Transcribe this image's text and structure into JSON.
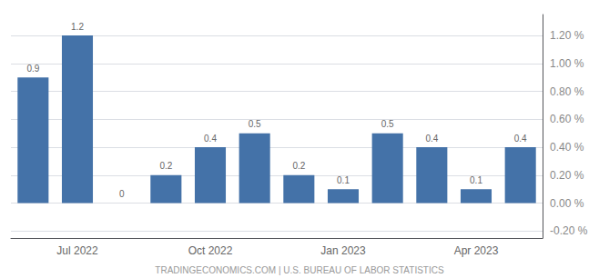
{
  "chart_data": {
    "type": "bar",
    "categories": [
      null,
      "Jul 2022",
      null,
      null,
      "Oct 2022",
      null,
      null,
      "Jan 2023",
      null,
      null,
      "Apr 2023",
      null
    ],
    "values": [
      0.9,
      1.2,
      0.0,
      0.2,
      0.4,
      0.5,
      0.2,
      0.1,
      0.5,
      0.4,
      0.1,
      0.4
    ],
    "color": "#4472a8",
    "ylim": [
      -0.25,
      1.35
    ],
    "yticks": [
      {
        "value": -0.2,
        "label": "-0.20 %"
      },
      {
        "value": 0.0,
        "label": "0.00 %"
      },
      {
        "value": 0.2,
        "label": "0.20 %"
      },
      {
        "value": 0.4,
        "label": "0.40 %"
      },
      {
        "value": 0.6,
        "label": "0.60 %"
      },
      {
        "value": 0.8,
        "label": "0.80 %"
      },
      {
        "value": 1.0,
        "label": "1.00 %"
      },
      {
        "value": 1.2,
        "label": "1.20 %"
      }
    ],
    "grid": true,
    "data_labels": true,
    "annotations": [
      "TRADINGECONOMICS.COM | U.S. BUREAU OF LABOR STATISTICS"
    ]
  }
}
